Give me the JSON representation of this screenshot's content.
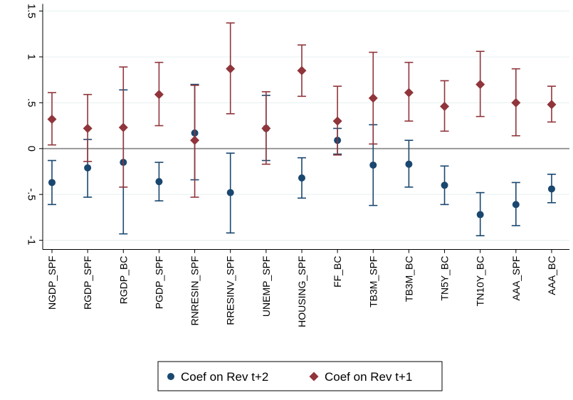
{
  "chart_data": {
    "type": "scatter",
    "categories": [
      "NGDP_SPF",
      "RGDP_SPF",
      "RGDP_BC",
      "PGDP_SPF",
      "RNRESIN_SPF",
      "RRESINV_SPF",
      "UNEMP_SPF",
      "HOUSING_SPF",
      "FF_BC",
      "TB3M_SPF",
      "TB3M_BC",
      "TN5Y_BC",
      "TN10Y_BC",
      "AAA_SPF",
      "AAA_BC"
    ],
    "ylim": [
      -1.1,
      1.5
    ],
    "yticks": [
      {
        "value": -1,
        "label": "-1"
      },
      {
        "value": -0.5,
        "label": "-.5"
      },
      {
        "value": 0,
        "label": "0"
      },
      {
        "value": 0.5,
        "label": ".5"
      },
      {
        "value": 1,
        "label": "1"
      },
      {
        "value": 1.5,
        "label": "1.5"
      }
    ],
    "grid": true,
    "zero_line": true,
    "legend_position": "bottom",
    "series": [
      {
        "name": "Coef on Rev t+2",
        "color": "#1a476f",
        "marker": "circle",
        "values": [
          -0.37,
          -0.21,
          -0.15,
          -0.36,
          0.17,
          -0.48,
          0.22,
          -0.32,
          0.09,
          -0.18,
          -0.17,
          -0.4,
          -0.72,
          -0.61,
          -0.44
        ],
        "lower": [
          -0.61,
          -0.53,
          -0.93,
          -0.57,
          -0.34,
          -0.92,
          -0.13,
          -0.54,
          -0.06,
          -0.62,
          -0.42,
          -0.61,
          -0.95,
          -0.84,
          -0.59
        ],
        "upper": [
          -0.13,
          0.1,
          0.64,
          -0.15,
          0.7,
          -0.05,
          0.58,
          -0.1,
          0.22,
          0.26,
          0.09,
          -0.19,
          -0.48,
          -0.37,
          -0.28
        ]
      },
      {
        "name": "Coef on Rev t+1",
        "color": "#90353b",
        "marker": "diamond",
        "values": [
          0.32,
          0.22,
          0.23,
          0.59,
          0.09,
          0.87,
          0.22,
          0.85,
          0.3,
          0.55,
          0.61,
          0.46,
          0.7,
          0.5,
          0.48
        ],
        "lower": [
          0.04,
          -0.14,
          -0.42,
          0.25,
          -0.53,
          0.38,
          -0.17,
          0.57,
          -0.07,
          0.05,
          0.3,
          0.19,
          0.35,
          0.14,
          0.29
        ],
        "upper": [
          0.61,
          0.59,
          0.89,
          0.94,
          0.69,
          1.37,
          0.62,
          1.13,
          0.68,
          1.05,
          0.94,
          0.74,
          1.06,
          0.87,
          0.68
        ]
      }
    ]
  }
}
